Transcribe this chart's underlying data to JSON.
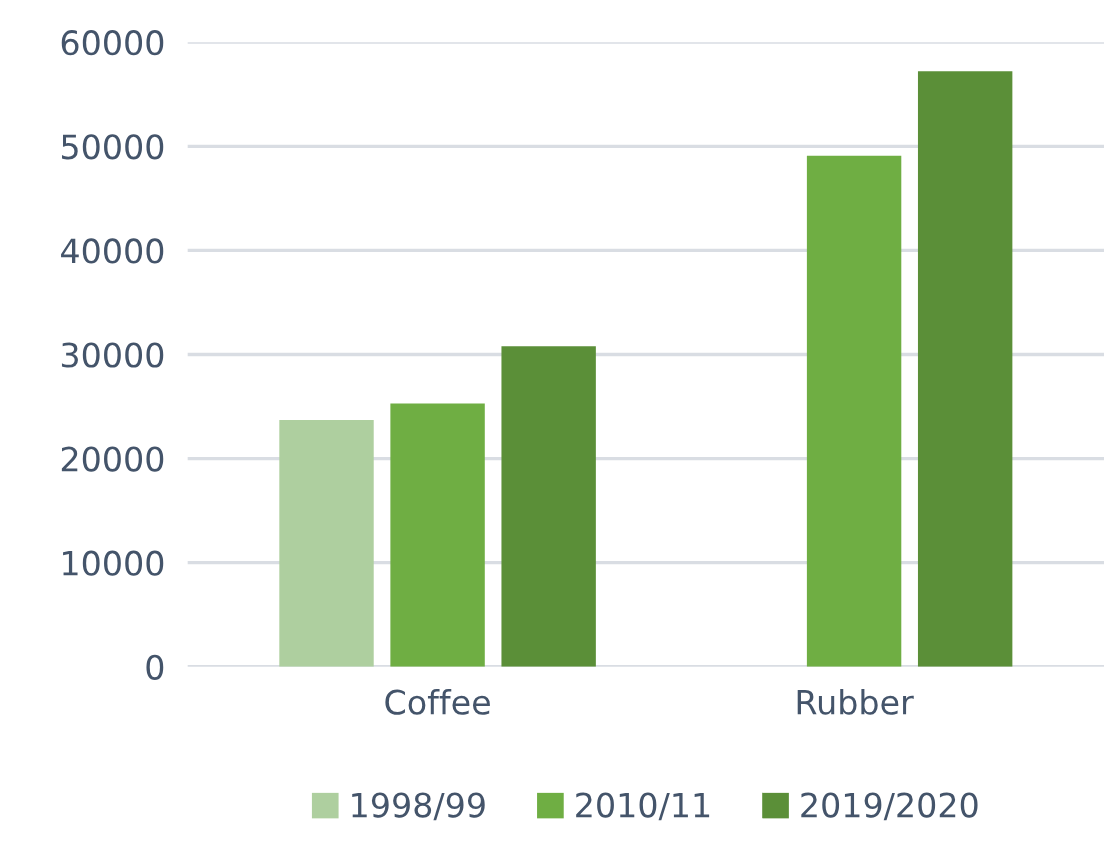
{
  "chart_data": {
    "type": "bar",
    "categories": [
      "Coffee",
      "Rubber"
    ],
    "series": [
      {
        "name": "1998/99",
        "color": "#aecf9f",
        "values": [
          23700,
          0
        ]
      },
      {
        "name": "2010/11",
        "color": "#6fae43",
        "values": [
          25300,
          49100
        ]
      },
      {
        "name": "2019/2020",
        "color": "#5b8f38",
        "values": [
          30800,
          57200
        ]
      }
    ],
    "ylim": [
      0,
      60000
    ],
    "yticks": [
      0,
      10000,
      20000,
      30000,
      40000,
      50000,
      60000
    ],
    "grid": "y",
    "legend": "bottom"
  }
}
